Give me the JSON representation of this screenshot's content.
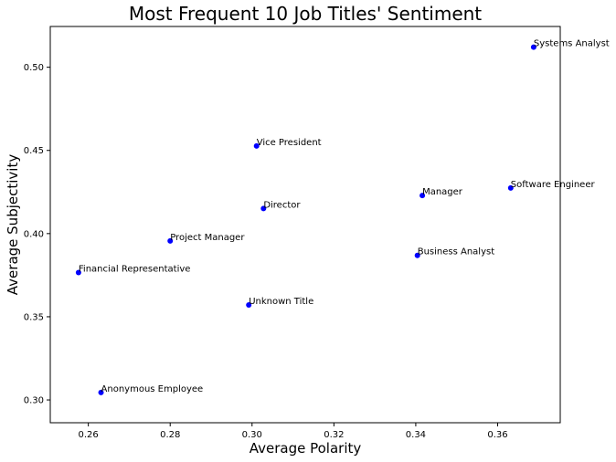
{
  "chart_data": {
    "type": "scatter",
    "title": "Most Frequent 10 Job Titles' Sentiment",
    "xlabel": "Average Polarity",
    "ylabel": "Average Subjectivity",
    "xlim": [
      0.2507,
      0.3753
    ],
    "ylim": [
      0.2863,
      0.5245
    ],
    "xticks": [
      0.26,
      0.28,
      0.3,
      0.32,
      0.34,
      0.36
    ],
    "xtick_labels": [
      "0.26",
      "0.28",
      "0.30",
      "0.32",
      "0.34",
      "0.36"
    ],
    "yticks": [
      0.3,
      0.35,
      0.4,
      0.45,
      0.5
    ],
    "ytick_labels": [
      "0.30",
      "0.35",
      "0.40",
      "0.45",
      "0.50"
    ],
    "grid": false,
    "marker_color": "#0000ff",
    "points": [
      {
        "label": "Systems Analyst",
        "x": 0.3688,
        "y": 0.5121
      },
      {
        "label": "Vice President",
        "x": 0.3011,
        "y": 0.4527
      },
      {
        "label": "Software Engineer",
        "x": 0.3632,
        "y": 0.4274
      },
      {
        "label": "Manager",
        "x": 0.3416,
        "y": 0.4229
      },
      {
        "label": "Director",
        "x": 0.3028,
        "y": 0.4151
      },
      {
        "label": "Project Manager",
        "x": 0.28,
        "y": 0.3956
      },
      {
        "label": "Business Analyst",
        "x": 0.3404,
        "y": 0.3869
      },
      {
        "label": "Financial Representative",
        "x": 0.2576,
        "y": 0.3766
      },
      {
        "label": "Unknown Title",
        "x": 0.2992,
        "y": 0.3571
      },
      {
        "label": "Anonymous Employee",
        "x": 0.2631,
        "y": 0.3045
      }
    ]
  }
}
